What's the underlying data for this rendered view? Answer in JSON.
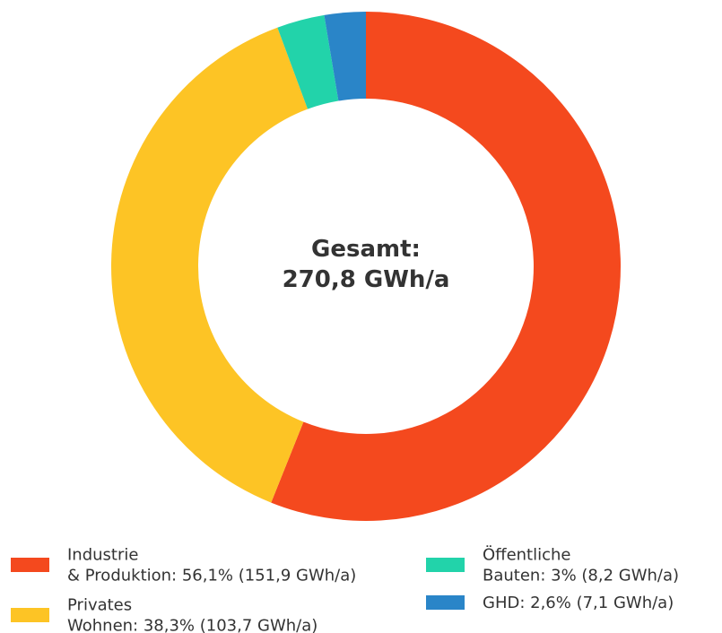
{
  "chart_data": {
    "type": "donut",
    "center_label": [
      "Gesamt:",
      "270,8 GWh/a"
    ],
    "categories": [
      [
        "Industrie",
        "& Produktion: 56,1% (151,9 GWh/a)"
      ],
      [
        "Privates",
        "Wohnen: 38,3% (103,7 GWh/a)"
      ],
      [
        "Öffentliche",
        "Bauten: 3% (8,2 GWh/a)"
      ],
      [
        "GHD: 2,6% (7,1 GWh/a)"
      ]
    ],
    "values": [
      151.9,
      103.7,
      8.2,
      7.1
    ],
    "colors": [
      "#f4491e",
      "#fdc425",
      "#22d3aa",
      "#2a85c8"
    ]
  }
}
